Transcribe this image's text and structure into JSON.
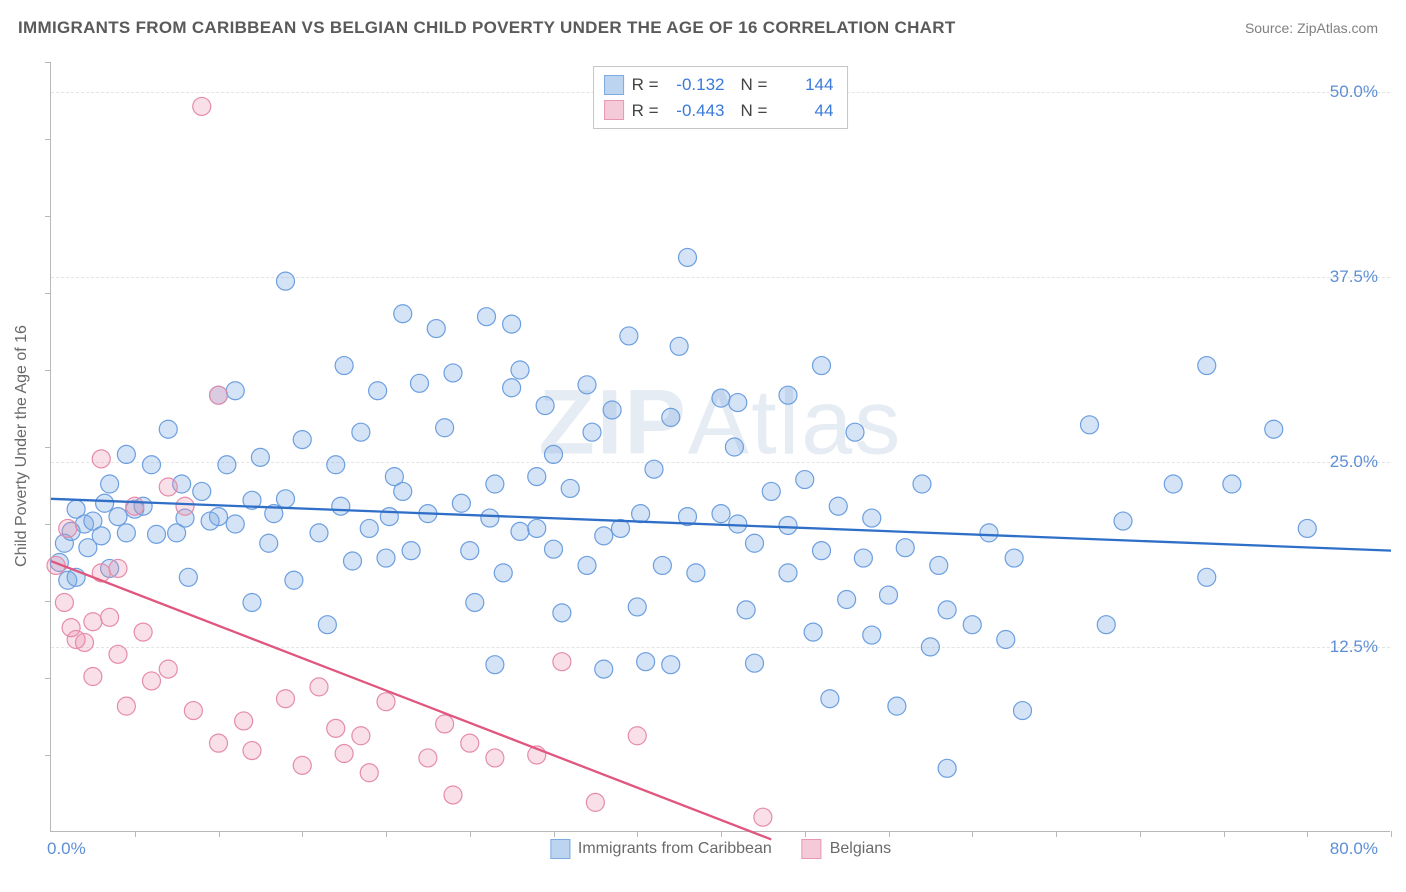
{
  "title": "IMMIGRANTS FROM CARIBBEAN VS BELGIAN CHILD POVERTY UNDER THE AGE OF 16 CORRELATION CHART",
  "source_prefix": "Source: ",
  "source_name": "ZipAtlas.com",
  "yaxis_title": "Child Poverty Under the Age of 16",
  "watermark_a": "ZIP",
  "watermark_b": "Atlas",
  "chart": {
    "type": "scatter",
    "xlim": [
      0,
      80
    ],
    "ylim": [
      0,
      52
    ],
    "yticks": [
      12.5,
      25.0,
      37.5,
      50.0
    ],
    "ytick_labels": [
      "12.5%",
      "25.0%",
      "37.5%",
      "50.0%"
    ],
    "xtick_labels": {
      "left": "0.0%",
      "right": "80.0%"
    },
    "minor_xticks_count": 16,
    "minor_yticks_count": 10,
    "grid_color": "#e4e4e4",
    "axis_color": "#b8b8b8",
    "tick_label_color": "#5d8fd6",
    "background": "#ffffff",
    "marker_radius": 9,
    "marker_stroke_width": 1.2,
    "line_width": 2.3
  },
  "series": [
    {
      "key": "caribbean",
      "label": "Immigrants from Caribbean",
      "fill": "rgba(120,167,225,0.32)",
      "stroke": "#6d9fe0",
      "line_color": "#2f6fc7",
      "swatch_fill": "#bcd4f0",
      "swatch_border": "#7eaae2",
      "R_label": "R =",
      "R": "-0.132",
      "N_label": "N =",
      "N": "144",
      "trend": {
        "x1": 0,
        "y1": 22.5,
        "x2": 80,
        "y2": 19.0
      },
      "points": [
        [
          0.5,
          18.2
        ],
        [
          0.8,
          19.5
        ],
        [
          1.0,
          17.0
        ],
        [
          1.2,
          20.3
        ],
        [
          1.5,
          21.8
        ],
        [
          1.5,
          17.2
        ],
        [
          2.0,
          20.8
        ],
        [
          2.2,
          19.2
        ],
        [
          2.5,
          21.0
        ],
        [
          3.0,
          20.0
        ],
        [
          3.2,
          22.2
        ],
        [
          3.5,
          23.5
        ],
        [
          3.5,
          17.8
        ],
        [
          4.0,
          21.3
        ],
        [
          4.5,
          20.2
        ],
        [
          4.5,
          25.5
        ],
        [
          5.0,
          21.8
        ],
        [
          5.5,
          22.0
        ],
        [
          6.0,
          24.8
        ],
        [
          6.3,
          20.1
        ],
        [
          7.0,
          27.2
        ],
        [
          7.5,
          20.2
        ],
        [
          7.8,
          23.5
        ],
        [
          8.0,
          21.2
        ],
        [
          8.2,
          17.2
        ],
        [
          9.0,
          23.0
        ],
        [
          9.5,
          21.0
        ],
        [
          10.0,
          21.3
        ],
        [
          10.0,
          29.5
        ],
        [
          10.5,
          24.8
        ],
        [
          11.0,
          29.8
        ],
        [
          11.0,
          20.8
        ],
        [
          12.0,
          15.5
        ],
        [
          12.0,
          22.4
        ],
        [
          12.5,
          25.3
        ],
        [
          13.0,
          19.5
        ],
        [
          13.3,
          21.5
        ],
        [
          14.0,
          22.5
        ],
        [
          14.0,
          37.2
        ],
        [
          14.5,
          17.0
        ],
        [
          15.0,
          26.5
        ],
        [
          16.0,
          20.2
        ],
        [
          16.5,
          14.0
        ],
        [
          17.0,
          24.8
        ],
        [
          17.3,
          22.0
        ],
        [
          17.5,
          31.5
        ],
        [
          18.0,
          18.3
        ],
        [
          18.5,
          27.0
        ],
        [
          19.0,
          20.5
        ],
        [
          19.5,
          29.8
        ],
        [
          20.0,
          18.5
        ],
        [
          20.2,
          21.3
        ],
        [
          20.5,
          24.0
        ],
        [
          21.0,
          23.0
        ],
        [
          21.0,
          35.0
        ],
        [
          21.5,
          19.0
        ],
        [
          22.0,
          30.3
        ],
        [
          22.5,
          21.5
        ],
        [
          23.0,
          34.0
        ],
        [
          23.5,
          27.3
        ],
        [
          24.0,
          31.0
        ],
        [
          24.5,
          22.2
        ],
        [
          25.0,
          19.0
        ],
        [
          25.3,
          15.5
        ],
        [
          26.0,
          34.8
        ],
        [
          26.2,
          21.2
        ],
        [
          26.5,
          11.3
        ],
        [
          26.5,
          23.5
        ],
        [
          27.0,
          17.5
        ],
        [
          27.5,
          30.0
        ],
        [
          27.5,
          34.3
        ],
        [
          28.0,
          20.3
        ],
        [
          28.0,
          31.2
        ],
        [
          29.0,
          24.0
        ],
        [
          29.0,
          20.5
        ],
        [
          29.5,
          28.8
        ],
        [
          30.0,
          25.5
        ],
        [
          30.0,
          19.1
        ],
        [
          30.5,
          14.8
        ],
        [
          31.0,
          23.2
        ],
        [
          32.0,
          18.0
        ],
        [
          32.0,
          30.2
        ],
        [
          32.3,
          27.0
        ],
        [
          33.0,
          20.0
        ],
        [
          33.0,
          11.0
        ],
        [
          33.5,
          28.5
        ],
        [
          34.0,
          20.5
        ],
        [
          34.5,
          33.5
        ],
        [
          35.0,
          15.2
        ],
        [
          35.2,
          21.5
        ],
        [
          35.5,
          11.5
        ],
        [
          36.0,
          24.5
        ],
        [
          36.5,
          18.0
        ],
        [
          37.0,
          28.0
        ],
        [
          37.0,
          11.3
        ],
        [
          37.5,
          32.8
        ],
        [
          38.0,
          21.3
        ],
        [
          38.0,
          38.8
        ],
        [
          38.5,
          17.5
        ],
        [
          40.0,
          21.5
        ],
        [
          40.0,
          29.3
        ],
        [
          40.8,
          26.0
        ],
        [
          41.0,
          20.8
        ],
        [
          41.0,
          29.0
        ],
        [
          41.5,
          15.0
        ],
        [
          42.0,
          11.4
        ],
        [
          42.0,
          19.5
        ],
        [
          43.0,
          23.0
        ],
        [
          44.0,
          17.5
        ],
        [
          44.0,
          20.7
        ],
        [
          44.0,
          29.5
        ],
        [
          45.0,
          23.8
        ],
        [
          45.5,
          13.5
        ],
        [
          46.0,
          19.0
        ],
        [
          46.0,
          31.5
        ],
        [
          46.5,
          9.0
        ],
        [
          47.0,
          22.0
        ],
        [
          47.5,
          15.7
        ],
        [
          48.0,
          27.0
        ],
        [
          48.5,
          18.5
        ],
        [
          49.0,
          13.3
        ],
        [
          49.0,
          21.2
        ],
        [
          50.0,
          16.0
        ],
        [
          50.5,
          8.5
        ],
        [
          51.0,
          19.2
        ],
        [
          52.0,
          23.5
        ],
        [
          52.5,
          12.5
        ],
        [
          53.0,
          18.0
        ],
        [
          53.5,
          4.3
        ],
        [
          53.5,
          15.0
        ],
        [
          55.0,
          14.0
        ],
        [
          56.0,
          20.2
        ],
        [
          57.0,
          13.0
        ],
        [
          57.5,
          18.5
        ],
        [
          58.0,
          8.2
        ],
        [
          62.0,
          27.5
        ],
        [
          63.0,
          14.0
        ],
        [
          64.0,
          21.0
        ],
        [
          67.0,
          23.5
        ],
        [
          69.0,
          31.5
        ],
        [
          69.0,
          17.2
        ],
        [
          70.5,
          23.5
        ],
        [
          73.0,
          27.2
        ],
        [
          75.0,
          20.5
        ]
      ]
    },
    {
      "key": "belgians",
      "label": "Belgians",
      "fill": "rgba(235,140,170,0.28)",
      "stroke": "#e58cab",
      "line_color": "#e0567e",
      "swatch_fill": "#f5cad8",
      "swatch_border": "#e797b4",
      "R_label": "R =",
      "R": "-0.443",
      "N_label": "N =",
      "N": "44",
      "trend": {
        "x1": 0,
        "y1": 18.3,
        "x2": 43,
        "y2": -0.5
      },
      "points": [
        [
          0.3,
          18.0
        ],
        [
          0.8,
          15.5
        ],
        [
          1.2,
          13.8
        ],
        [
          1.0,
          20.5
        ],
        [
          1.5,
          13.0
        ],
        [
          2.0,
          12.8
        ],
        [
          2.5,
          14.2
        ],
        [
          2.5,
          10.5
        ],
        [
          3.0,
          17.5
        ],
        [
          3.0,
          25.2
        ],
        [
          3.5,
          14.5
        ],
        [
          4.0,
          12.0
        ],
        [
          4.0,
          17.8
        ],
        [
          4.5,
          8.5
        ],
        [
          5.0,
          22.0
        ],
        [
          5.5,
          13.5
        ],
        [
          6.0,
          10.2
        ],
        [
          7.0,
          11.0
        ],
        [
          7.0,
          23.3
        ],
        [
          8.0,
          22.0
        ],
        [
          8.5,
          8.2
        ],
        [
          9.0,
          49.0
        ],
        [
          10.0,
          29.5
        ],
        [
          10.0,
          6.0
        ],
        [
          11.5,
          7.5
        ],
        [
          12.0,
          5.5
        ],
        [
          14.0,
          9.0
        ],
        [
          15.0,
          4.5
        ],
        [
          16.0,
          9.8
        ],
        [
          17.0,
          7.0
        ],
        [
          17.5,
          5.3
        ],
        [
          18.5,
          6.5
        ],
        [
          19.0,
          4.0
        ],
        [
          20.0,
          8.8
        ],
        [
          22.5,
          5.0
        ],
        [
          23.5,
          7.3
        ],
        [
          24.0,
          2.5
        ],
        [
          25.0,
          6.0
        ],
        [
          26.5,
          5.0
        ],
        [
          29.0,
          5.2
        ],
        [
          30.5,
          11.5
        ],
        [
          32.5,
          2.0
        ],
        [
          35.0,
          6.5
        ],
        [
          42.5,
          1.0
        ]
      ]
    }
  ]
}
